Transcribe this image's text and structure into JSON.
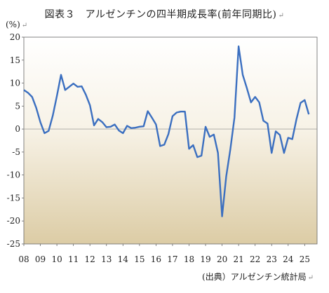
{
  "title": "図表３　アルゼンチンの四半期成長率(前年同期比)",
  "source": "(出典）アルゼンチン統計局",
  "chart_data": {
    "type": "line",
    "unit": "(%)",
    "ylim": [
      -25,
      20
    ],
    "yticks": [
      20,
      15,
      10,
      5,
      0,
      -5,
      -10,
      -15,
      -20,
      -25
    ],
    "xlim": [
      2008.0,
      2025.75
    ],
    "xticks": [
      "08",
      "09",
      "10",
      "11",
      "12",
      "13",
      "14",
      "15",
      "16",
      "17",
      "18",
      "19",
      "20",
      "21",
      "22",
      "23",
      "24",
      "25"
    ],
    "grid": false,
    "line_color": "#3b6fc0",
    "series": [
      {
        "x": [
          2008.0,
          2008.25,
          2008.5,
          2008.75,
          2009.0,
          2009.25,
          2009.5,
          2009.75,
          2010.0,
          2010.25,
          2010.5,
          2010.75,
          2011.0,
          2011.25,
          2011.5,
          2011.75,
          2012.0,
          2012.25,
          2012.5,
          2012.75,
          2013.0,
          2013.25,
          2013.5,
          2013.75,
          2014.0,
          2014.25,
          2014.5,
          2014.75,
          2015.0,
          2015.25,
          2015.5,
          2015.75,
          2016.0,
          2016.25,
          2016.5,
          2016.75,
          2017.0,
          2017.25,
          2017.5,
          2017.75,
          2018.0,
          2018.25,
          2018.5,
          2018.75,
          2019.0,
          2019.25,
          2019.5,
          2019.75,
          2020.0,
          2020.25,
          2020.5,
          2020.75,
          2021.0,
          2021.25,
          2021.5,
          2021.75,
          2022.0,
          2022.25,
          2022.5,
          2022.75,
          2023.0,
          2023.25,
          2023.5,
          2023.75,
          2024.0,
          2024.25,
          2024.5,
          2024.75,
          2025.0,
          2025.25,
          2025.5
        ],
        "y": [
          8.5,
          7.9,
          7.0,
          4.6,
          1.5,
          -0.9,
          -0.4,
          2.9,
          7.2,
          11.8,
          8.5,
          9.2,
          9.9,
          9.2,
          9.3,
          7.5,
          5.2,
          0.8,
          2.2,
          1.5,
          0.4,
          0.5,
          1.0,
          -0.3,
          -0.9,
          0.7,
          0.2,
          0.3,
          0.5,
          0.6,
          3.9,
          2.5,
          1.0,
          -3.7,
          -3.4,
          -1.1,
          2.8,
          3.6,
          3.8,
          3.8,
          -4.3,
          -3.5,
          -6.1,
          -5.8,
          0.5,
          -1.7,
          -1.2,
          -5.2,
          -19.0,
          -10.3,
          -4.4,
          2.5,
          18.0,
          11.8,
          8.9,
          5.8,
          7.0,
          5.8,
          1.8,
          1.2,
          -5.2,
          -0.5,
          -1.3,
          -5.2,
          -1.9,
          -2.2,
          2.1,
          5.7,
          6.3,
          3.2,
          null
        ]
      }
    ]
  }
}
